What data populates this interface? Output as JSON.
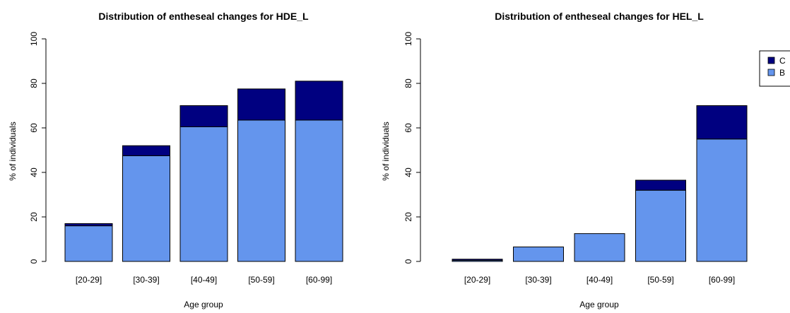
{
  "chart_data": [
    {
      "type": "bar",
      "stacked": true,
      "title": "Distribution of entheseal changes for HDE_L",
      "xlabel": "Age group",
      "ylabel": "% of individuals",
      "ylim": [
        0,
        100
      ],
      "yticks": [
        0,
        20,
        40,
        60,
        80,
        100
      ],
      "categories": [
        "[20-29]",
        "[30-39]",
        "[40-49]",
        "[50-59]",
        "[60-99]"
      ],
      "series": [
        {
          "name": "B",
          "color": "#6495ED",
          "values": [
            16,
            47.5,
            60.5,
            63.5,
            63.5
          ]
        },
        {
          "name": "C",
          "color": "#000080",
          "values": [
            1,
            4.5,
            9.5,
            14,
            17.5
          ]
        }
      ],
      "grid": false
    },
    {
      "type": "bar",
      "stacked": true,
      "title": "Distribution of entheseal changes for HEL_L",
      "xlabel": "Age group",
      "ylabel": "% of individuals",
      "ylim": [
        0,
        100
      ],
      "yticks": [
        0,
        20,
        40,
        60,
        80,
        100
      ],
      "categories": [
        "[20-29]",
        "[30-39]",
        "[40-49]",
        "[50-59]",
        "[60-99]"
      ],
      "series": [
        {
          "name": "B",
          "color": "#6495ED",
          "values": [
            0.5,
            6.5,
            12.5,
            32,
            55
          ]
        },
        {
          "name": "C",
          "color": "#000080",
          "values": [
            0.5,
            0,
            0,
            4.5,
            15
          ]
        }
      ],
      "legend": {
        "position": "top-right",
        "entries": [
          {
            "label": "C",
            "color": "#000080"
          },
          {
            "label": "B",
            "color": "#6495ED"
          }
        ]
      },
      "grid": false
    }
  ]
}
